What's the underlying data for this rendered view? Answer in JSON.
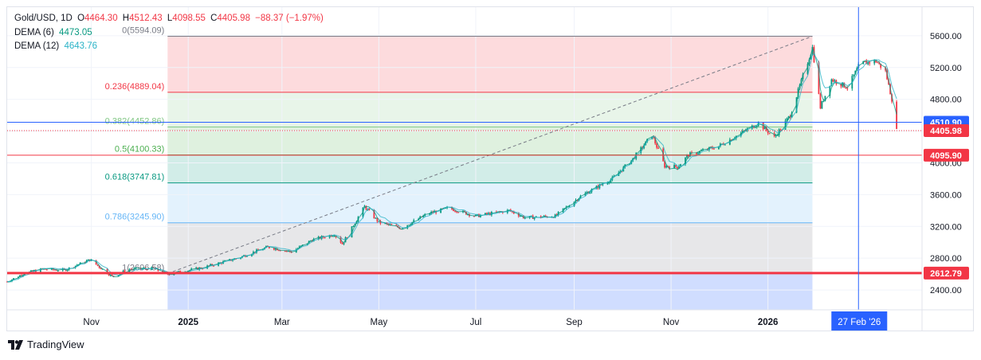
{
  "header": {
    "symbol": "Gold/USD, 1D",
    "open_label": "O",
    "open": "4464.30",
    "high_label": "H",
    "high": "4512.43",
    "low_label": "L",
    "low": "4098.55",
    "close_label": "C",
    "close": "4405.98",
    "change": "−88.37 (−1.97%)",
    "dema6_label": "DEMA (6)",
    "dema6_value": "4473.05",
    "dema12_label": "DEMA (12)",
    "dema12_value": "4643.76"
  },
  "colors": {
    "up": "#089981",
    "down": "#f23645",
    "dema6": "#089981",
    "dema12": "#2ab3c7",
    "fib_red": "#f23645",
    "fib_green": "#4caf50",
    "fib_teal": "#089981",
    "fib_blue": "#2962ff",
    "fib_grey": "#787b86",
    "crosshair": "#2962ff"
  },
  "brand": {
    "name": "TradingView"
  },
  "chart_data": {
    "type": "candlestick",
    "y_axis": {
      "ticks": [
        2400,
        2800,
        3200,
        3600,
        4000,
        4400,
        4800,
        5200,
        5600
      ],
      "tick_labels": [
        "2400.00",
        "2800.00",
        "3200.00",
        "3600.00",
        "4000.00",
        "4400.00",
        "4800.00",
        "5200.00",
        "5600.00"
      ],
      "range": [
        2150,
        5960
      ]
    },
    "x_axis": {
      "labels": [
        "Nov",
        "2025",
        "Mar",
        "May",
        "Jul",
        "Sep",
        "Nov",
        "2026"
      ],
      "label_dates": [
        "2024-11-01",
        "2025-01-01",
        "2025-03-01",
        "2025-05-01",
        "2025-07-01",
        "2025-09-01",
        "2025-11-01",
        "2026-01-01"
      ],
      "bold": [
        "2025",
        "2026"
      ],
      "range": [
        "2024-09-09",
        "2026-04-08"
      ]
    },
    "price_markers": [
      {
        "label": "4510.90",
        "value": 4510.9,
        "color": "#2962ff",
        "line": "solid-blue"
      },
      {
        "label": "4405.98",
        "value": 4405.98,
        "color": "#f23645",
        "line": "dotted"
      },
      {
        "label": "4095.90",
        "value": 4095.9,
        "color": "#f23645",
        "line": "solid-red"
      },
      {
        "label": "2612.79",
        "value": 2612.79,
        "color": "#f23645",
        "line": "thick-red"
      }
    ],
    "crosshair": {
      "date": "2026-02-27",
      "label": "27 Feb '26"
    },
    "fibonacci": {
      "start": {
        "date": "2024-12-19",
        "value": 2606.58
      },
      "end": {
        "date": "2026-01-29",
        "value": 5594.09
      },
      "levels": [
        {
          "ratio": 0,
          "label": "0(5594.09)",
          "value": 5594.09,
          "color": "#787b86",
          "fill": null
        },
        {
          "ratio": 0.236,
          "label": "0.236(4889.04)",
          "value": 4889.04,
          "color": "#f23645",
          "fill": "#f23645"
        },
        {
          "ratio": 0.382,
          "label": "0.382(4452.86)",
          "value": 4452.86,
          "color": "#81c784",
          "fill": "#81c784"
        },
        {
          "ratio": 0.5,
          "label": "0.5(4100.33)",
          "value": 4100.33,
          "color": "#4caf50",
          "fill": "#4caf50"
        },
        {
          "ratio": 0.618,
          "label": "0.618(3747.81)",
          "value": 3747.81,
          "color": "#089981",
          "fill": "#089981"
        },
        {
          "ratio": 0.786,
          "label": "0.786(3245.90)",
          "value": 3245.9,
          "color": "#64b5f6",
          "fill": "#64b5f6"
        },
        {
          "ratio": 1,
          "label": "1(2606.58)",
          "value": 2606.58,
          "color": "#787b86",
          "fill": "#787b86"
        },
        {
          "ratio": 1.1,
          "label": "",
          "value": 2150,
          "color": "#2962ff",
          "fill": "#2962ff"
        }
      ]
    },
    "price_path": [
      [
        "2024-09-09",
        2505
      ],
      [
        "2024-09-20",
        2610
      ],
      [
        "2024-10-01",
        2660
      ],
      [
        "2024-10-15",
        2650
      ],
      [
        "2024-10-31",
        2780
      ],
      [
        "2024-11-14",
        2570
      ],
      [
        "2024-11-25",
        2660
      ],
      [
        "2024-12-10",
        2670
      ],
      [
        "2024-12-19",
        2600
      ],
      [
        "2025-01-10",
        2680
      ],
      [
        "2025-02-01",
        2800
      ],
      [
        "2025-02-20",
        2940
      ],
      [
        "2025-03-07",
        2880
      ],
      [
        "2025-03-20",
        3030
      ],
      [
        "2025-04-03",
        3100
      ],
      [
        "2025-04-08",
        2980
      ],
      [
        "2025-04-22",
        3450
      ],
      [
        "2025-05-01",
        3250
      ],
      [
        "2025-05-15",
        3180
      ],
      [
        "2025-06-01",
        3360
      ],
      [
        "2025-06-14",
        3430
      ],
      [
        "2025-07-01",
        3330
      ],
      [
        "2025-07-22",
        3400
      ],
      [
        "2025-08-01",
        3310
      ],
      [
        "2025-08-20",
        3330
      ],
      [
        "2025-09-05",
        3580
      ],
      [
        "2025-09-25",
        3800
      ],
      [
        "2025-10-08",
        4050
      ],
      [
        "2025-10-20",
        4350
      ],
      [
        "2025-10-28",
        3960
      ],
      [
        "2025-11-05",
        3950
      ],
      [
        "2025-11-12",
        4100
      ],
      [
        "2025-12-01",
        4210
      ],
      [
        "2025-12-26",
        4500
      ],
      [
        "2026-01-05",
        4320
      ],
      [
        "2026-01-15",
        4600
      ],
      [
        "2026-01-29",
        5450
      ],
      [
        "2026-02-03",
        4700
      ],
      [
        "2026-02-10",
        5050
      ],
      [
        "2026-02-20",
        4950
      ],
      [
        "2026-02-28",
        5250
      ],
      [
        "2026-03-10",
        5280
      ],
      [
        "2026-03-16",
        5150
      ],
      [
        "2026-03-20",
        4800
      ],
      [
        "2026-03-23",
        4405.98
      ]
    ]
  }
}
